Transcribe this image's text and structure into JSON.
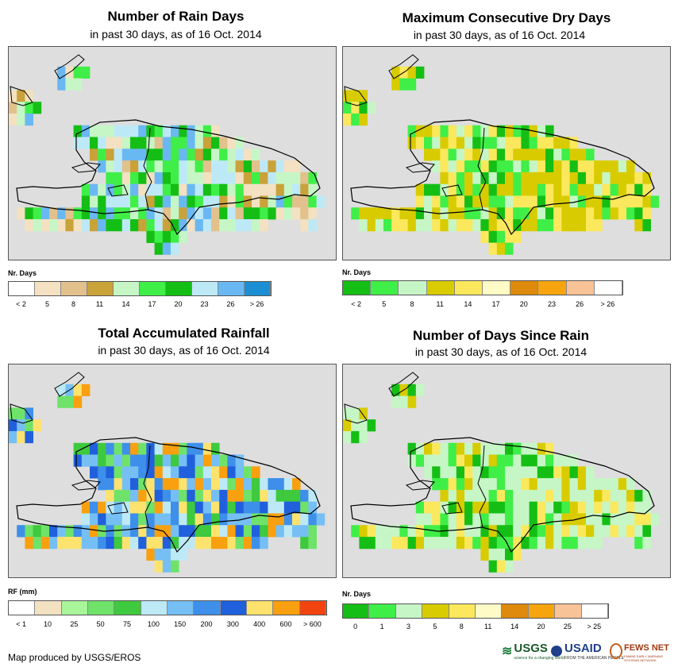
{
  "panels": [
    {
      "title": "Number of Rain Days",
      "subtitle": "in past 30 days, as of 16 Oct. 2014",
      "legend_title": "Nr. Days",
      "legend_colors": [
        "#ffffff",
        "#f3e1c1",
        "#e2c18d",
        "#c9a23a",
        "#c6f6c6",
        "#40ee48",
        "#15be15",
        "#bde9f7",
        "#6ab8f2",
        "#1c8fd4"
      ],
      "legend_labels": [
        "< 2",
        "5",
        "8",
        "11",
        "14",
        "17",
        "20",
        "23",
        "26",
        "> 26"
      ],
      "palette": [
        "#f3e1c1",
        "#e2c18d",
        "#c9a23a",
        "#c6f6c6",
        "#40ee48",
        "#15be15",
        "#bde9f7",
        "#6ab8f2"
      ]
    },
    {
      "title": "Maximum Consecutive Dry Days",
      "subtitle": "in past 30 days, as of 16 Oct. 2014",
      "legend_title": "Nr. Days",
      "legend_colors": [
        "#15be15",
        "#40ee48",
        "#c6f6c6",
        "#d8cc00",
        "#fbe85c",
        "#fffbc6",
        "#de8a0c",
        "#f6a50f",
        "#f9c398",
        "#ffffff"
      ],
      "legend_labels": [
        "< 2",
        "5",
        "8",
        "11",
        "14",
        "17",
        "20",
        "23",
        "26",
        "> 26"
      ],
      "palette": [
        "#d8cc00",
        "#d8cc00",
        "#fbe85c",
        "#c6f6c6",
        "#40ee48",
        "#15be15",
        "#d8cc00",
        "#fbe85c"
      ]
    },
    {
      "title": "Total Accumulated Rainfall",
      "subtitle": "in past 30 days, as of 16 Oct. 2014",
      "legend_title": "RF (mm)",
      "legend_colors": [
        "#ffffff",
        "#f3e1c1",
        "#a9f59a",
        "#6fe26a",
        "#3ec93e",
        "#bde9f7",
        "#76bff4",
        "#3d8fea",
        "#2060dd",
        "#fde36e",
        "#f8a00f",
        "#f24410"
      ],
      "legend_labels": [
        "< 1",
        "10",
        "25",
        "50",
        "75",
        "100",
        "150",
        "200",
        "300",
        "400",
        "600",
        "> 600"
      ],
      "palette": [
        "#6fe26a",
        "#3ec93e",
        "#bde9f7",
        "#76bff4",
        "#3d8fea",
        "#2060dd",
        "#fde36e",
        "#f8a00f"
      ]
    },
    {
      "title": "Number of Days Since Rain",
      "subtitle": "in past 30 days, as of 16 Oct. 2014",
      "legend_title": "Nr. Days",
      "legend_colors": [
        "#15be15",
        "#40ee48",
        "#c6f6c6",
        "#d8cc00",
        "#fbe85c",
        "#fffbc6",
        "#de8a0c",
        "#f6a50f",
        "#f9c398",
        "#ffffff"
      ],
      "legend_labels": [
        "0",
        "1",
        "3",
        "5",
        "8",
        "11",
        "14",
        "20",
        "25",
        "> 25"
      ],
      "palette": [
        "#c6f6c6",
        "#c6f6c6",
        "#c6f6c6",
        "#40ee48",
        "#15be15",
        "#d8cc00",
        "#fbe85c",
        "#c6f6c6"
      ]
    }
  ],
  "footer": "Map produced by USGS/EROS",
  "logos": {
    "usgs": "USGS",
    "usgs_tagline": "science for a changing world",
    "usaid": "USAID",
    "usaid_tagline": "FROM THE AMERICAN PEOPLE",
    "fewsnet": "FEWS NET",
    "fewsnet_tagline": "FAMINE EARLY WARNING SYSTEMS NETWORK"
  }
}
